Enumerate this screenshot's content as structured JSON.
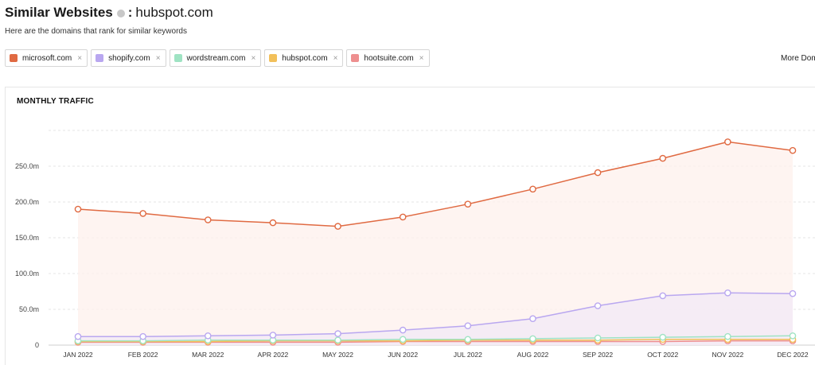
{
  "header": {
    "title": "Similar Websites",
    "separator": ":",
    "domain": "hubspot.com",
    "subtitle": "Here are the domains that rank for similar keywords"
  },
  "chips": [
    {
      "label": "microsoft.com",
      "color": "#e06a42"
    },
    {
      "label": "shopify.com",
      "color": "#b9a7f0"
    },
    {
      "label": "wordstream.com",
      "color": "#9fe3c3"
    },
    {
      "label": "hubspot.com",
      "color": "#f2c05a"
    },
    {
      "label": "hootsuite.com",
      "color": "#ee8f8f"
    }
  ],
  "chip_close_glyph": "×",
  "more_link": "More Dom",
  "panel": {
    "title": "MONTHLY TRAFFIC"
  },
  "chart_data": {
    "type": "line",
    "title": "MONTHLY TRAFFIC",
    "categories": [
      "JAN 2022",
      "FEB 2022",
      "MAR 2022",
      "APR 2022",
      "MAY 2022",
      "JUN 2022",
      "JUL 2022",
      "AUG 2022",
      "SEP 2022",
      "OCT 2022",
      "NOV 2022",
      "DEC 2022"
    ],
    "y_ticks": [
      {
        "value": 0,
        "label": "0"
      },
      {
        "value": 50,
        "label": "50.0m"
      },
      {
        "value": 100,
        "label": "100.0m"
      },
      {
        "value": 150,
        "label": "150.0m"
      },
      {
        "value": 200,
        "label": "200.0m"
      },
      {
        "value": 250,
        "label": "250.0m"
      }
    ],
    "ylim": [
      0,
      310
    ],
    "unit": "millions",
    "series": [
      {
        "name": "microsoft.com",
        "color": "#e06a42",
        "fill": "#fdf0ec",
        "values": [
          190,
          184,
          175,
          171,
          166,
          179,
          197,
          218,
          241,
          261,
          284,
          272
        ]
      },
      {
        "name": "shopify.com",
        "color": "#b9a7f0",
        "fill": "#f1eaf6",
        "values": [
          12,
          12,
          13,
          14,
          16,
          21,
          27,
          37,
          55,
          69,
          73,
          72
        ]
      },
      {
        "name": "wordstream.com",
        "color": "#9fe3c3",
        "values": [
          6,
          6,
          7,
          7,
          7,
          8,
          8,
          9,
          10,
          11,
          12,
          13
        ]
      },
      {
        "name": "hubspot.com",
        "color": "#f2c05a",
        "values": [
          5,
          5,
          5,
          6,
          6,
          6,
          7,
          7,
          7,
          8,
          8,
          8
        ]
      },
      {
        "name": "hootsuite.com",
        "color": "#ee8f8f",
        "values": [
          4,
          4,
          4,
          4,
          4,
          5,
          5,
          5,
          5,
          5,
          6,
          6
        ]
      }
    ],
    "grid": "horizontal-dashed",
    "legend": "top-chips"
  }
}
